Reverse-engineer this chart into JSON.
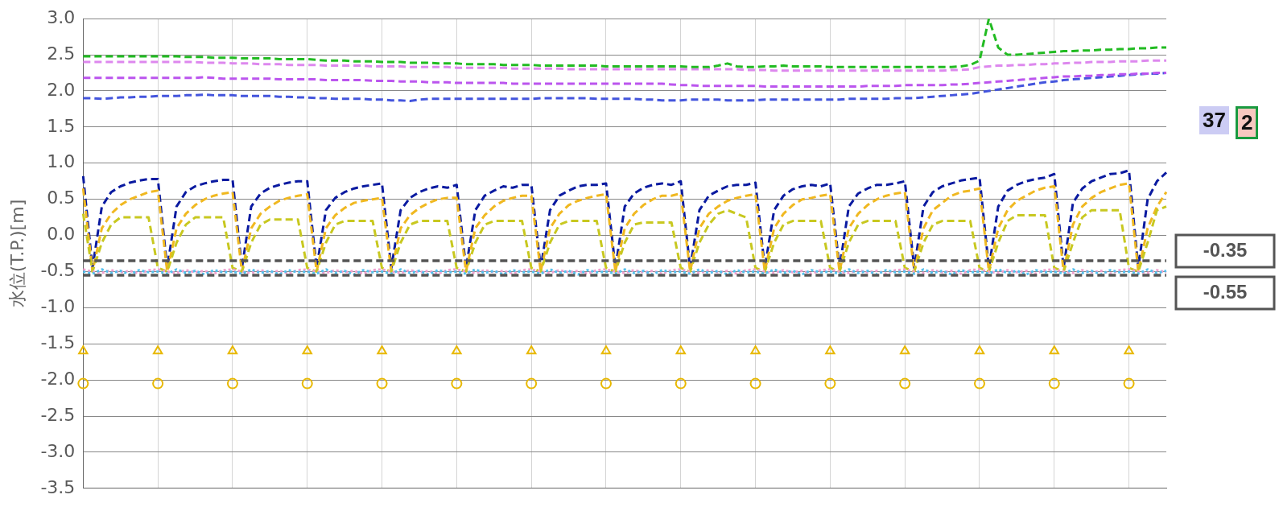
{
  "chart_data": {
    "type": "line",
    "ylabel": "水位(T.P.)[m]",
    "categories": [
      null,
      null,
      null,
      null,
      null,
      null,
      null,
      null,
      null,
      null,
      null,
      null,
      null,
      null,
      null,
      null,
      null,
      null,
      null,
      null,
      null,
      null,
      null,
      null,
      null,
      null,
      null,
      null,
      null,
      null,
      null,
      null,
      null,
      null,
      null,
      null,
      null,
      null,
      null,
      null,
      null,
      null,
      null,
      null,
      null,
      null,
      null,
      null,
      null,
      null,
      null,
      null,
      null,
      null,
      null,
      null,
      null,
      null,
      null,
      null,
      null,
      null,
      null,
      null,
      null,
      null,
      null,
      null,
      null,
      null,
      null,
      null,
      null,
      null,
      null,
      null,
      null,
      null,
      null,
      null,
      null,
      null,
      null,
      null,
      null,
      null,
      null,
      null,
      null,
      null,
      null,
      null,
      null,
      null,
      null,
      null,
      null,
      null,
      null,
      null,
      null,
      null,
      null,
      null,
      null,
      null,
      null,
      null,
      null,
      null,
      null,
      null,
      null,
      null,
      null,
      null,
      null
    ],
    "ylim": [
      -3.5,
      3.0
    ],
    "yticks": [
      {
        "value": -3.5,
        "label": "-3.5"
      },
      {
        "value": -3,
        "label": "-3.0"
      },
      {
        "value": -2.5,
        "label": "-2.5"
      },
      {
        "value": -2,
        "label": "-2.0"
      },
      {
        "value": -1.5,
        "label": "-1.5"
      },
      {
        "value": -1,
        "label": "-1.0"
      },
      {
        "value": -0.5,
        "label": "-0.5"
      },
      {
        "value": 0,
        "label": "0.0"
      },
      {
        "value": 0.5,
        "label": "0.5"
      },
      {
        "value": 1,
        "label": "1.0"
      },
      {
        "value": 1.5,
        "label": "1.5"
      },
      {
        "value": 2,
        "label": "2.0"
      },
      {
        "value": 2.5,
        "label": "2.5"
      },
      {
        "value": 3,
        "label": "3.0"
      }
    ],
    "grid": true,
    "tick_labels": "y",
    "legend": false,
    "marker": "none",
    "line_style": "dashed",
    "ref_lines": [
      {
        "axis": "y",
        "value": -0.35,
        "label": "-0.35",
        "color": "#555555",
        "line_style": "dashed"
      },
      {
        "axis": "y",
        "value": -0.55,
        "label": "-0.55",
        "color": "#555555",
        "line_style": "dashed"
      }
    ],
    "annotations": [
      "37",
      "2"
    ],
    "series": [
      {
        "color": "#22bb22",
        "values": [
          2.48,
          2.48,
          2.48,
          2.48,
          2.48,
          2.48,
          2.48,
          2.48,
          2.48,
          2.48,
          2.48,
          2.47,
          2.47,
          2.47,
          2.46,
          2.46,
          2.46,
          2.45,
          2.45,
          2.45,
          2.45,
          2.44,
          2.44,
          2.44,
          2.44,
          2.43,
          2.42,
          2.42,
          2.42,
          2.41,
          2.41,
          2.41,
          2.4,
          2.4,
          2.4,
          2.39,
          2.39,
          2.39,
          2.38,
          2.38,
          2.38,
          2.37,
          2.37,
          2.37,
          2.37,
          2.36,
          2.36,
          2.36,
          2.36,
          2.35,
          2.35,
          2.35,
          2.35,
          2.35,
          2.35,
          2.35,
          2.34,
          2.34,
          2.34,
          2.34,
          2.34,
          2.34,
          2.34,
          2.34,
          2.34,
          2.33,
          2.33,
          2.33,
          2.35,
          2.38,
          2.34,
          2.33,
          2.33,
          2.34,
          2.34,
          2.35,
          2.34,
          2.34,
          2.34,
          2.34,
          2.33,
          2.33,
          2.33,
          2.33,
          2.33,
          2.33,
          2.33,
          2.33,
          2.33,
          2.33,
          2.33,
          2.33,
          2.33,
          2.33,
          2.34,
          2.36,
          2.42,
          3.0,
          2.6,
          2.5,
          2.5,
          2.51,
          2.52,
          2.53,
          2.54,
          2.55,
          2.55,
          2.56,
          2.56,
          2.57,
          2.57,
          2.58,
          2.58,
          2.59,
          2.59,
          2.6,
          2.6
        ]
      },
      {
        "color": "#dd88ee",
        "values": [
          2.4,
          2.4,
          2.4,
          2.4,
          2.4,
          2.4,
          2.4,
          2.4,
          2.4,
          2.4,
          2.4,
          2.4,
          2.4,
          2.39,
          2.39,
          2.39,
          2.38,
          2.38,
          2.38,
          2.37,
          2.37,
          2.37,
          2.36,
          2.36,
          2.36,
          2.36,
          2.35,
          2.35,
          2.35,
          2.35,
          2.35,
          2.34,
          2.34,
          2.34,
          2.34,
          2.33,
          2.33,
          2.33,
          2.33,
          2.33,
          2.32,
          2.32,
          2.32,
          2.32,
          2.32,
          2.32,
          2.31,
          2.31,
          2.31,
          2.31,
          2.31,
          2.31,
          2.3,
          2.3,
          2.3,
          2.3,
          2.3,
          2.3,
          2.3,
          2.3,
          2.3,
          2.3,
          2.3,
          2.3,
          2.3,
          2.3,
          2.3,
          2.3,
          2.3,
          2.3,
          2.3,
          2.29,
          2.29,
          2.29,
          2.28,
          2.28,
          2.28,
          2.28,
          2.28,
          2.28,
          2.28,
          2.28,
          2.28,
          2.28,
          2.28,
          2.28,
          2.28,
          2.28,
          2.28,
          2.28,
          2.28,
          2.28,
          2.28,
          2.29,
          2.29,
          2.3,
          2.33,
          2.34,
          2.35,
          2.35,
          2.36,
          2.36,
          2.37,
          2.37,
          2.38,
          2.38,
          2.39,
          2.39,
          2.4,
          2.4,
          2.4,
          2.41,
          2.41,
          2.41,
          2.42,
          2.42,
          2.42
        ]
      },
      {
        "color": "#bb55ee",
        "values": [
          2.18,
          2.18,
          2.18,
          2.18,
          2.18,
          2.18,
          2.18,
          2.18,
          2.18,
          2.18,
          2.18,
          2.18,
          2.18,
          2.19,
          2.18,
          2.17,
          2.17,
          2.17,
          2.17,
          2.17,
          2.17,
          2.16,
          2.16,
          2.16,
          2.16,
          2.16,
          2.15,
          2.15,
          2.15,
          2.15,
          2.15,
          2.14,
          2.14,
          2.14,
          2.13,
          2.13,
          2.13,
          2.12,
          2.12,
          2.12,
          2.11,
          2.11,
          2.11,
          2.11,
          2.11,
          2.11,
          2.1,
          2.1,
          2.1,
          2.1,
          2.1,
          2.1,
          2.1,
          2.1,
          2.1,
          2.1,
          2.1,
          2.1,
          2.1,
          2.1,
          2.1,
          2.1,
          2.1,
          2.09,
          2.08,
          2.08,
          2.07,
          2.07,
          2.07,
          2.07,
          2.07,
          2.07,
          2.07,
          2.06,
          2.06,
          2.06,
          2.06,
          2.06,
          2.06,
          2.06,
          2.06,
          2.06,
          2.06,
          2.06,
          2.07,
          2.07,
          2.07,
          2.07,
          2.08,
          2.08,
          2.08,
          2.08,
          2.08,
          2.09,
          2.09,
          2.1,
          2.11,
          2.12,
          2.13,
          2.14,
          2.15,
          2.16,
          2.17,
          2.18,
          2.19,
          2.2,
          2.2,
          2.21,
          2.21,
          2.22,
          2.22,
          2.23,
          2.23,
          2.24,
          2.24,
          2.25,
          2.25
        ]
      },
      {
        "color": "#4455dd",
        "values": [
          1.9,
          1.9,
          1.89,
          1.9,
          1.91,
          1.91,
          1.92,
          1.92,
          1.93,
          1.93,
          1.93,
          1.94,
          1.94,
          1.95,
          1.94,
          1.94,
          1.94,
          1.93,
          1.93,
          1.93,
          1.93,
          1.92,
          1.92,
          1.91,
          1.91,
          1.9,
          1.9,
          1.89,
          1.89,
          1.89,
          1.89,
          1.88,
          1.88,
          1.87,
          1.87,
          1.86,
          1.88,
          1.89,
          1.89,
          1.89,
          1.89,
          1.89,
          1.89,
          1.89,
          1.89,
          1.89,
          1.89,
          1.89,
          1.89,
          1.9,
          1.9,
          1.9,
          1.9,
          1.9,
          1.9,
          1.89,
          1.89,
          1.89,
          1.89,
          1.89,
          1.88,
          1.88,
          1.87,
          1.87,
          1.87,
          1.88,
          1.88,
          1.88,
          1.88,
          1.87,
          1.87,
          1.87,
          1.87,
          1.88,
          1.88,
          1.88,
          1.88,
          1.88,
          1.88,
          1.88,
          1.88,
          1.88,
          1.89,
          1.89,
          1.89,
          1.89,
          1.89,
          1.9,
          1.9,
          1.9,
          1.91,
          1.92,
          1.93,
          1.94,
          1.95,
          1.96,
          1.98,
          2.0,
          2.02,
          2.04,
          2.06,
          2.08,
          2.1,
          2.12,
          2.13,
          2.15,
          2.16,
          2.17,
          2.18,
          2.19,
          2.2,
          2.21,
          2.22,
          2.23,
          2.24,
          2.24,
          2.25
        ]
      },
      {
        "color": "#55c0ee",
        "line_style": "dotted",
        "values": [
          -0.5,
          -0.53,
          -0.47,
          -0.52,
          -0.49,
          -0.54,
          -0.48,
          -0.51,
          -0.5,
          -0.53,
          -0.47,
          -0.52,
          -0.49,
          -0.54,
          -0.48,
          -0.51,
          -0.5,
          -0.53,
          -0.47,
          -0.52,
          -0.49,
          -0.54,
          -0.48,
          -0.51,
          -0.5,
          -0.53,
          -0.47,
          -0.52,
          -0.49,
          -0.54,
          -0.48,
          -0.51,
          -0.5,
          -0.53,
          -0.47,
          -0.52,
          -0.49,
          -0.54,
          -0.48,
          -0.51,
          -0.5,
          -0.53,
          -0.47,
          -0.52,
          -0.49,
          -0.54,
          -0.48,
          -0.51,
          -0.5,
          -0.53,
          -0.47,
          -0.52,
          -0.49,
          -0.54,
          -0.48,
          -0.51,
          -0.5,
          -0.53,
          -0.47,
          -0.52,
          -0.49,
          -0.54,
          -0.48,
          -0.51,
          -0.5,
          -0.53,
          -0.47,
          -0.52,
          -0.49,
          -0.54,
          -0.48,
          -0.51,
          -0.5,
          -0.53,
          -0.47,
          -0.52,
          -0.49,
          -0.54,
          -0.48,
          -0.51,
          -0.5,
          -0.53,
          -0.47,
          -0.52,
          -0.49,
          -0.54,
          -0.48,
          -0.51,
          -0.5,
          -0.53,
          -0.47,
          -0.52,
          -0.49,
          -0.54,
          -0.48,
          -0.51,
          -0.5,
          -0.53,
          -0.47,
          -0.52,
          -0.49,
          -0.54,
          -0.48,
          -0.51,
          -0.5,
          -0.53,
          -0.47,
          -0.52,
          -0.49,
          -0.54,
          -0.48,
          -0.51,
          -0.5,
          -0.53,
          -0.47,
          -0.52,
          -0.49
        ]
      },
      {
        "color": "#f0a0d0",
        "line_style": "dotted",
        "values": [
          -0.47,
          -0.5,
          -0.52,
          -0.48,
          -0.51,
          -0.49,
          -0.53,
          -0.48,
          -0.47,
          -0.5,
          -0.52,
          -0.48,
          -0.51,
          -0.49,
          -0.53,
          -0.48,
          -0.47,
          -0.5,
          -0.52,
          -0.48,
          -0.51,
          -0.49,
          -0.53,
          -0.48,
          -0.47,
          -0.5,
          -0.52,
          -0.48,
          -0.51,
          -0.49,
          -0.53,
          -0.48,
          -0.47,
          -0.5,
          -0.52,
          -0.48,
          -0.51,
          -0.49,
          -0.53,
          -0.48,
          -0.47,
          -0.5,
          -0.52,
          -0.48,
          -0.51,
          -0.49,
          -0.53,
          -0.48,
          -0.47,
          -0.5,
          -0.52,
          -0.48,
          -0.51,
          -0.49,
          -0.53,
          -0.48,
          -0.47,
          -0.5,
          -0.52,
          -0.48,
          -0.51,
          -0.49,
          -0.53,
          -0.48,
          -0.47,
          -0.5,
          -0.52,
          -0.48,
          -0.51,
          -0.49,
          -0.53,
          -0.48,
          -0.47,
          -0.5,
          -0.52,
          -0.48,
          -0.51,
          -0.49,
          -0.53,
          -0.48,
          -0.47,
          -0.5,
          -0.52,
          -0.48,
          -0.51,
          -0.49,
          -0.53,
          -0.48,
          -0.47,
          -0.5,
          -0.52,
          -0.48,
          -0.51,
          -0.49,
          -0.53,
          -0.48,
          -0.47,
          -0.5,
          -0.52,
          -0.48,
          -0.51,
          -0.49,
          -0.53,
          -0.48,
          -0.47,
          -0.5,
          -0.52,
          -0.48,
          -0.51,
          -0.49,
          -0.53,
          -0.48,
          -0.47,
          -0.5,
          -0.52,
          -0.48,
          -0.51
        ]
      },
      {
        "color": "#c8c820",
        "values": [
          0.3,
          -0.5,
          -0.1,
          0.15,
          0.25,
          0.25,
          0.25,
          0.25,
          -0.45,
          -0.5,
          -0.1,
          0.15,
          0.25,
          0.25,
          0.25,
          0.25,
          -0.45,
          -0.5,
          -0.1,
          0.15,
          0.22,
          0.22,
          0.22,
          0.22,
          -0.45,
          -0.5,
          -0.1,
          0.15,
          0.2,
          0.2,
          0.2,
          0.2,
          -0.45,
          -0.5,
          -0.1,
          0.15,
          0.2,
          0.2,
          0.2,
          0.2,
          -0.45,
          -0.5,
          -0.1,
          0.15,
          0.2,
          0.2,
          0.2,
          0.2,
          -0.45,
          -0.5,
          -0.1,
          0.15,
          0.2,
          0.2,
          0.2,
          0.2,
          -0.45,
          -0.5,
          -0.1,
          0.15,
          0.18,
          0.18,
          0.18,
          0.18,
          -0.45,
          -0.5,
          -0.1,
          0.15,
          0.3,
          0.35,
          0.3,
          0.25,
          -0.45,
          -0.5,
          -0.1,
          0.15,
          0.2,
          0.2,
          0.2,
          0.2,
          -0.45,
          -0.5,
          -0.1,
          0.15,
          0.2,
          0.2,
          0.2,
          0.2,
          -0.45,
          -0.5,
          -0.1,
          0.15,
          0.2,
          0.2,
          0.2,
          0.2,
          -0.45,
          -0.5,
          -0.1,
          0.2,
          0.28,
          0.28,
          0.28,
          0.28,
          -0.45,
          -0.5,
          -0.1,
          0.25,
          0.35,
          0.35,
          0.35,
          0.35,
          -0.45,
          -0.5,
          -0.1,
          0.35,
          0.4
        ]
      },
      {
        "color": "#f0b820",
        "values": [
          0.65,
          -0.5,
          0.1,
          0.3,
          0.42,
          0.5,
          0.55,
          0.6,
          0.62,
          -0.5,
          0.1,
          0.3,
          0.42,
          0.5,
          0.55,
          0.58,
          0.6,
          -0.5,
          0.1,
          0.3,
          0.4,
          0.48,
          0.52,
          0.55,
          0.57,
          -0.5,
          0.1,
          0.28,
          0.38,
          0.45,
          0.48,
          0.5,
          0.52,
          -0.5,
          0.1,
          0.28,
          0.38,
          0.45,
          0.5,
          0.52,
          0.52,
          -0.5,
          0.1,
          0.28,
          0.4,
          0.48,
          0.52,
          0.55,
          0.55,
          -0.5,
          0.1,
          0.3,
          0.42,
          0.48,
          0.52,
          0.55,
          0.57,
          -0.5,
          0.1,
          0.3,
          0.42,
          0.5,
          0.55,
          0.55,
          0.58,
          -0.5,
          0.1,
          0.3,
          0.4,
          0.48,
          0.52,
          0.55,
          0.57,
          -0.5,
          0.1,
          0.3,
          0.42,
          0.5,
          0.52,
          0.55,
          0.57,
          -0.5,
          0.1,
          0.3,
          0.42,
          0.5,
          0.55,
          0.58,
          0.6,
          -0.5,
          0.1,
          0.35,
          0.45,
          0.55,
          0.6,
          0.62,
          0.65,
          -0.5,
          0.1,
          0.35,
          0.48,
          0.55,
          0.62,
          0.66,
          0.68,
          -0.5,
          0.15,
          0.4,
          0.52,
          0.6,
          0.65,
          0.7,
          0.72,
          -0.5,
          0.1,
          0.4,
          0.6
        ]
      },
      {
        "color": "#0a1aa0",
        "values": [
          0.82,
          -0.45,
          0.4,
          0.6,
          0.68,
          0.73,
          0.76,
          0.78,
          0.78,
          -0.45,
          0.4,
          0.6,
          0.68,
          0.72,
          0.75,
          0.77,
          0.77,
          -0.45,
          0.4,
          0.58,
          0.66,
          0.7,
          0.73,
          0.75,
          0.75,
          -0.45,
          0.35,
          0.52,
          0.6,
          0.65,
          0.68,
          0.7,
          0.72,
          -0.45,
          0.35,
          0.52,
          0.6,
          0.65,
          0.68,
          0.66,
          0.7,
          -0.45,
          0.35,
          0.55,
          0.62,
          0.68,
          0.66,
          0.7,
          0.7,
          -0.45,
          0.35,
          0.55,
          0.62,
          0.68,
          0.7,
          0.7,
          0.72,
          -0.45,
          0.4,
          0.58,
          0.66,
          0.7,
          0.72,
          0.7,
          0.75,
          -0.45,
          0.35,
          0.55,
          0.62,
          0.68,
          0.7,
          0.7,
          0.73,
          -0.45,
          0.35,
          0.55,
          0.64,
          0.68,
          0.7,
          0.68,
          0.72,
          -0.45,
          0.4,
          0.58,
          0.65,
          0.7,
          0.7,
          0.72,
          0.75,
          -0.45,
          0.4,
          0.6,
          0.68,
          0.72,
          0.76,
          0.78,
          0.8,
          -0.45,
          0.4,
          0.62,
          0.7,
          0.75,
          0.78,
          0.8,
          0.85,
          -0.45,
          0.45,
          0.65,
          0.75,
          0.8,
          0.85,
          0.86,
          0.9,
          -0.45,
          0.5,
          0.75,
          0.87
        ]
      },
      {
        "type": "scatter",
        "marker": "triangle",
        "color": "#e8b800",
        "values": [
          -1.6,
          null,
          null,
          null,
          null,
          null,
          null,
          null,
          -1.6,
          null,
          null,
          null,
          null,
          null,
          null,
          null,
          -1.6,
          null,
          null,
          null,
          null,
          null,
          null,
          null,
          -1.6,
          null,
          null,
          null,
          null,
          null,
          null,
          null,
          -1.6,
          null,
          null,
          null,
          null,
          null,
          null,
          null,
          -1.6,
          null,
          null,
          null,
          null,
          null,
          null,
          null,
          -1.6,
          null,
          null,
          null,
          null,
          null,
          null,
          null,
          -1.6,
          null,
          null,
          null,
          null,
          null,
          null,
          null,
          -1.6,
          null,
          null,
          null,
          null,
          null,
          null,
          null,
          -1.6,
          null,
          null,
          null,
          null,
          null,
          null,
          null,
          -1.6,
          null,
          null,
          null,
          null,
          null,
          null,
          null,
          -1.6,
          null,
          null,
          null,
          null,
          null,
          null,
          null,
          -1.6,
          null,
          null,
          null,
          null,
          null,
          null,
          null,
          -1.6,
          null,
          null,
          null,
          null,
          null,
          null,
          null,
          -1.6,
          null,
          null,
          null,
          null
        ]
      },
      {
        "type": "scatter",
        "marker": "circle",
        "color": "#e8b800",
        "values": [
          -2.05,
          null,
          null,
          null,
          null,
          null,
          null,
          null,
          -2.05,
          null,
          null,
          null,
          null,
          null,
          null,
          null,
          -2.05,
          null,
          null,
          null,
          null,
          null,
          null,
          null,
          -2.05,
          null,
          null,
          null,
          null,
          null,
          null,
          null,
          -2.05,
          null,
          null,
          null,
          null,
          null,
          null,
          null,
          -2.05,
          null,
          null,
          null,
          null,
          null,
          null,
          null,
          -2.05,
          null,
          null,
          null,
          null,
          null,
          null,
          null,
          -2.05,
          null,
          null,
          null,
          null,
          null,
          null,
          null,
          -2.05,
          null,
          null,
          null,
          null,
          null,
          null,
          null,
          -2.05,
          null,
          null,
          null,
          null,
          null,
          null,
          null,
          -2.05,
          null,
          null,
          null,
          null,
          null,
          null,
          null,
          -2.05,
          null,
          null,
          null,
          null,
          null,
          null,
          null,
          -2.05,
          null,
          null,
          null,
          null,
          null,
          null,
          null,
          -2.05,
          null,
          null,
          null,
          null,
          null,
          null,
          null,
          -2.05,
          null,
          null,
          null,
          null
        ]
      }
    ]
  }
}
